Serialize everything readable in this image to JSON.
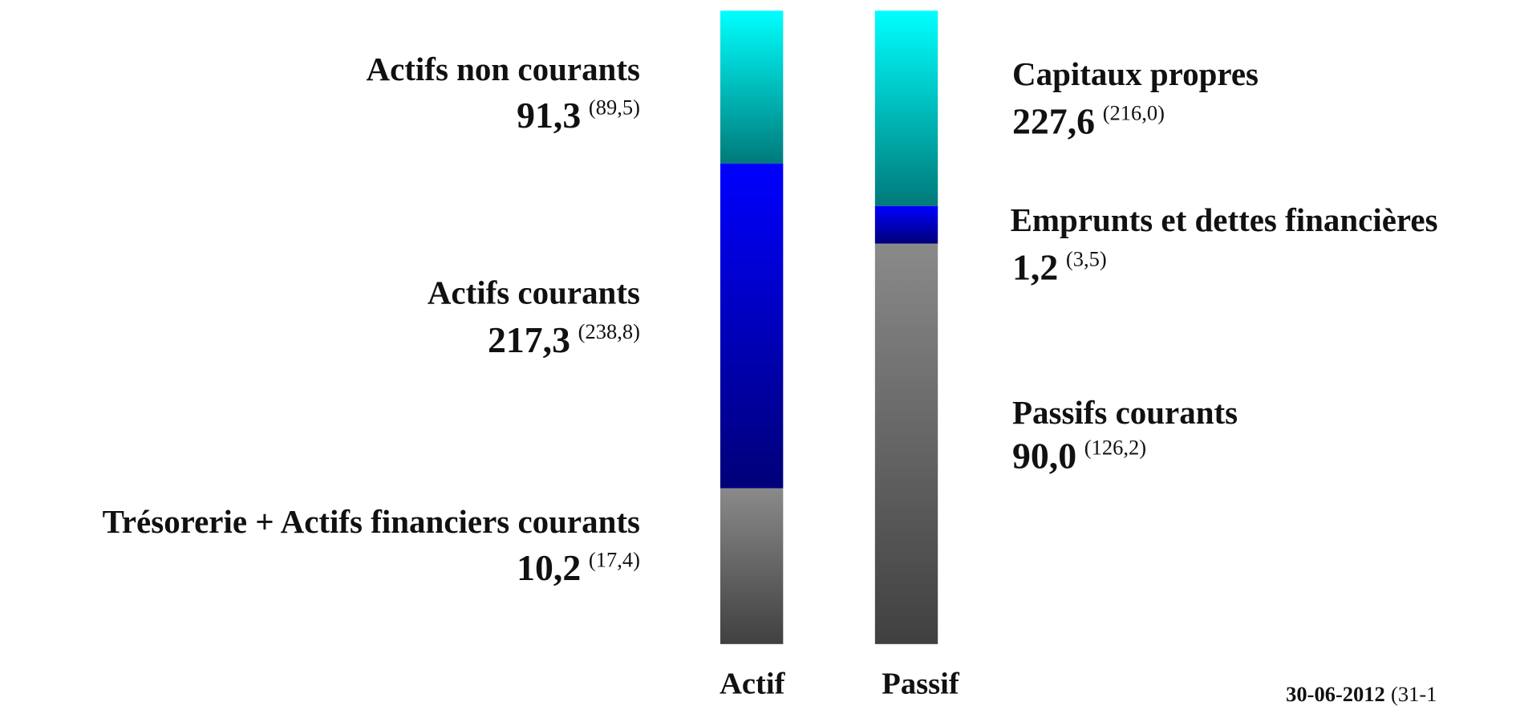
{
  "actif": {
    "label": "Actif",
    "items": [
      {
        "name": "Actifs non courants",
        "value": "91,3",
        "previous": "(89,5)"
      },
      {
        "name": "Actifs courants",
        "value": "217,3",
        "previous": "(238,8)"
      },
      {
        "name": "Trésorerie + Actifs financiers courants",
        "value": "10,2",
        "previous": "(17,4)"
      }
    ]
  },
  "passif": {
    "label": "Passif",
    "items": [
      {
        "name": "Capitaux propres",
        "value": "227,6",
        "previous": "(216,0)"
      },
      {
        "name": "Emprunts et dettes financières",
        "value": "1,2",
        "previous": "(3,5)"
      },
      {
        "name": "Passifs courants",
        "value": "90,0",
        "previous": "(126,2)"
      }
    ]
  },
  "footer": {
    "date": "30-06-2012",
    "previous_date": "(31-1"
  }
}
